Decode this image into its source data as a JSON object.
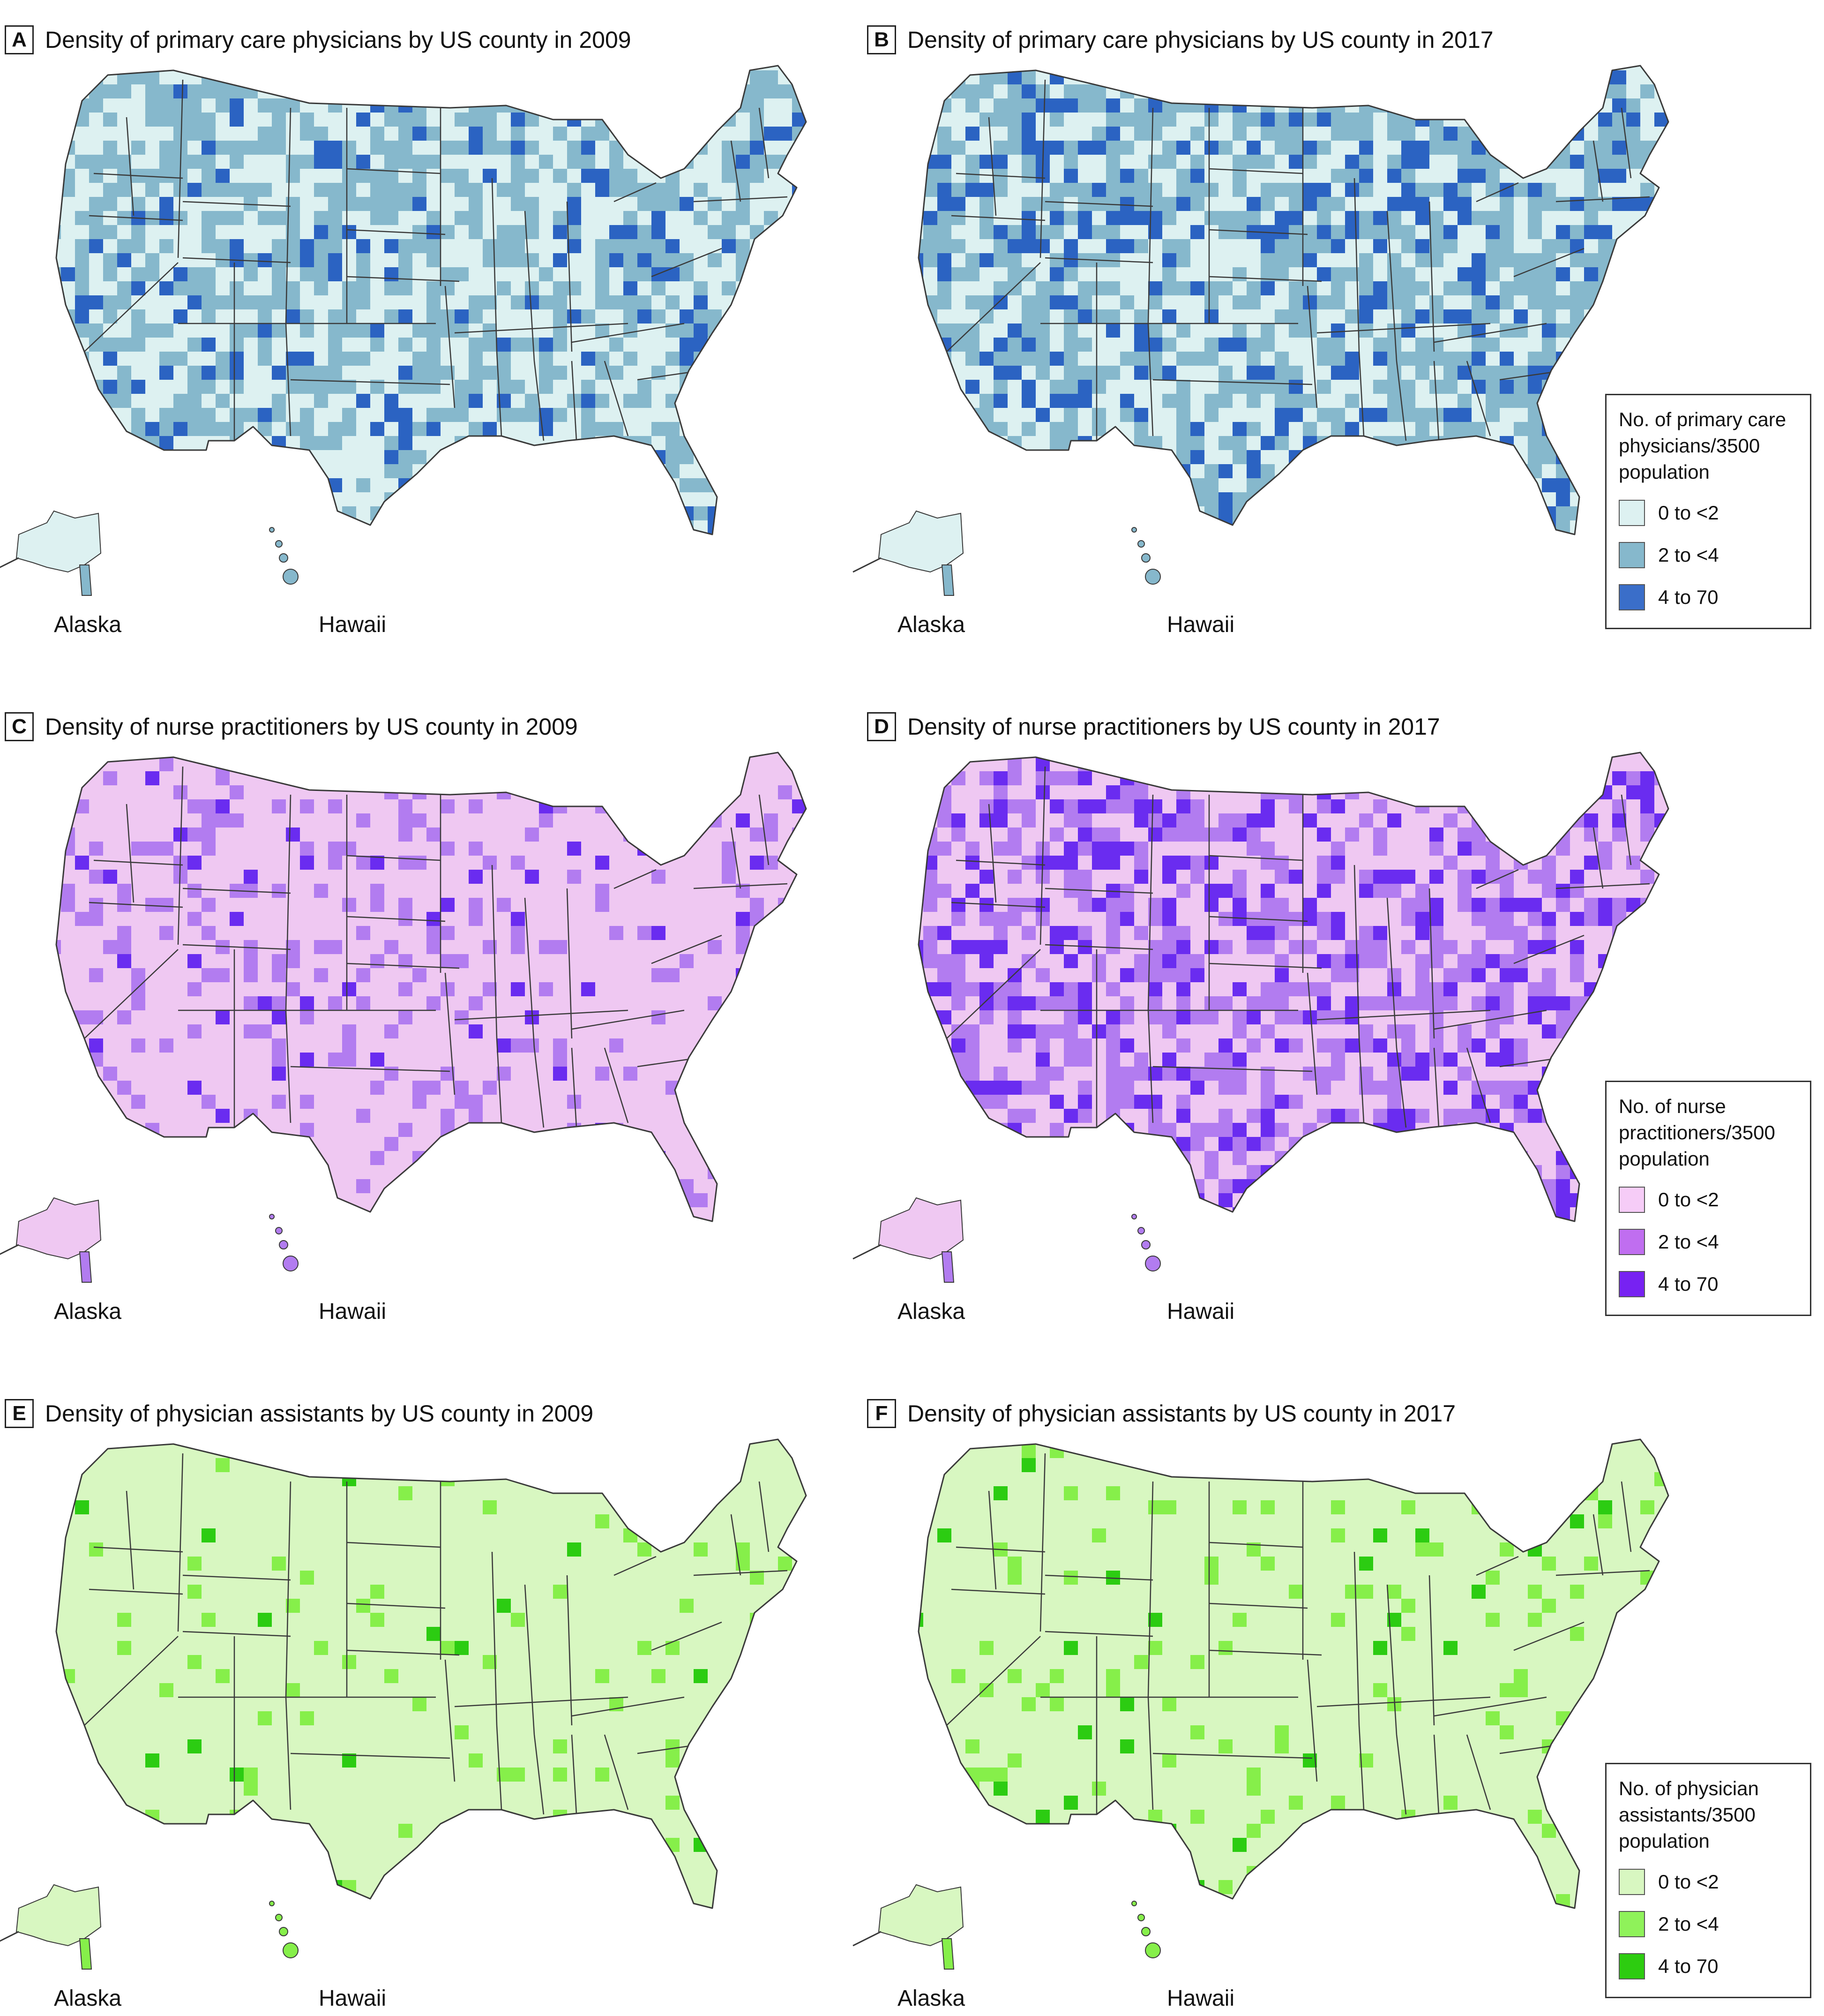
{
  "inset_labels": {
    "alaska": "Alaska",
    "hawaii": "Hawaii"
  },
  "panels": [
    {
      "letter": "A",
      "title": "Density of primary care physicians by US county in 2009",
      "colors": [
        "#ddf1f1",
        "#86b8cc",
        "#2b63c2"
      ]
    },
    {
      "letter": "B",
      "title": "Density of primary care physicians by US county in 2017",
      "colors": [
        "#ddf1f1",
        "#86b8cc",
        "#2b63c2"
      ]
    },
    {
      "letter": "C",
      "title": "Density of nurse practitioners by US county in 2009",
      "colors": [
        "#efc8f2",
        "#b27cf0",
        "#6a2cf0"
      ]
    },
    {
      "letter": "D",
      "title": "Density of nurse practitioners by  US county in 2017",
      "colors": [
        "#efc8f2",
        "#b27cf0",
        "#6a2cf0"
      ]
    },
    {
      "letter": "E",
      "title": "Density of physician assistants by US county in 2009",
      "colors": [
        "#d8f7c1",
        "#86ef4a",
        "#2ccc12"
      ]
    },
    {
      "letter": "F",
      "title": "Density of physician assistants by US county in 2017",
      "colors": [
        "#d8f7c1",
        "#86ef4a",
        "#2ccc12"
      ]
    }
  ],
  "legends": [
    {
      "title_lines": [
        "No. of primary care",
        "physicians/3500",
        "population"
      ],
      "items": [
        {
          "label": "0 to <2",
          "color": "#ddf1f1"
        },
        {
          "label": "2 to <4",
          "color": "#86b8cc"
        },
        {
          "label": "4 to 70",
          "color": "#3a6ec9"
        }
      ]
    },
    {
      "title_lines": [
        "No. of nurse",
        "practitioners/3500",
        "population"
      ],
      "items": [
        {
          "label": "0 to <2",
          "color": "#f6ccf7"
        },
        {
          "label": "2 to <4",
          "color": "#c06ef0"
        },
        {
          "label": "4 to 70",
          "color": "#7722f2"
        }
      ]
    },
    {
      "title_lines": [
        "No. of physician",
        "assistants/3500",
        "population"
      ],
      "items": [
        {
          "label": "0 to <2",
          "color": "#d8f7c1"
        },
        {
          "label": "2 to <4",
          "color": "#8ff25a"
        },
        {
          "label": "4 to 70",
          "color": "#2dcc10"
        }
      ]
    }
  ]
}
